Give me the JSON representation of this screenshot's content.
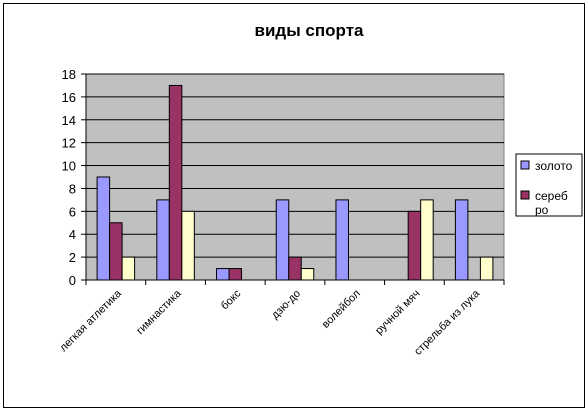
{
  "chart_data": {
    "type": "bar",
    "title": "виды спорта",
    "xlabel": "",
    "ylabel": "",
    "ylim": [
      0,
      18
    ],
    "ytick_step": 2,
    "grid": true,
    "legend_placement": "right",
    "categories": [
      "легкая атлетика",
      "гимнастика",
      "бокс",
      "дзю-до",
      "волейбол",
      "ручной мяч",
      "стрельба из лука"
    ],
    "series": [
      {
        "name": "золото",
        "color": "#9999ff",
        "values": [
          9,
          7,
          1,
          7,
          7,
          0,
          7
        ]
      },
      {
        "name": "сереб ро",
        "color": "#993366",
        "values": [
          5,
          17,
          1,
          2,
          0,
          6,
          0
        ]
      },
      {
        "name": "",
        "color": "#ffffcc",
        "values": [
          2,
          6,
          0,
          1,
          0,
          7,
          2
        ]
      }
    ],
    "plot_background": "#c0c0c0"
  }
}
